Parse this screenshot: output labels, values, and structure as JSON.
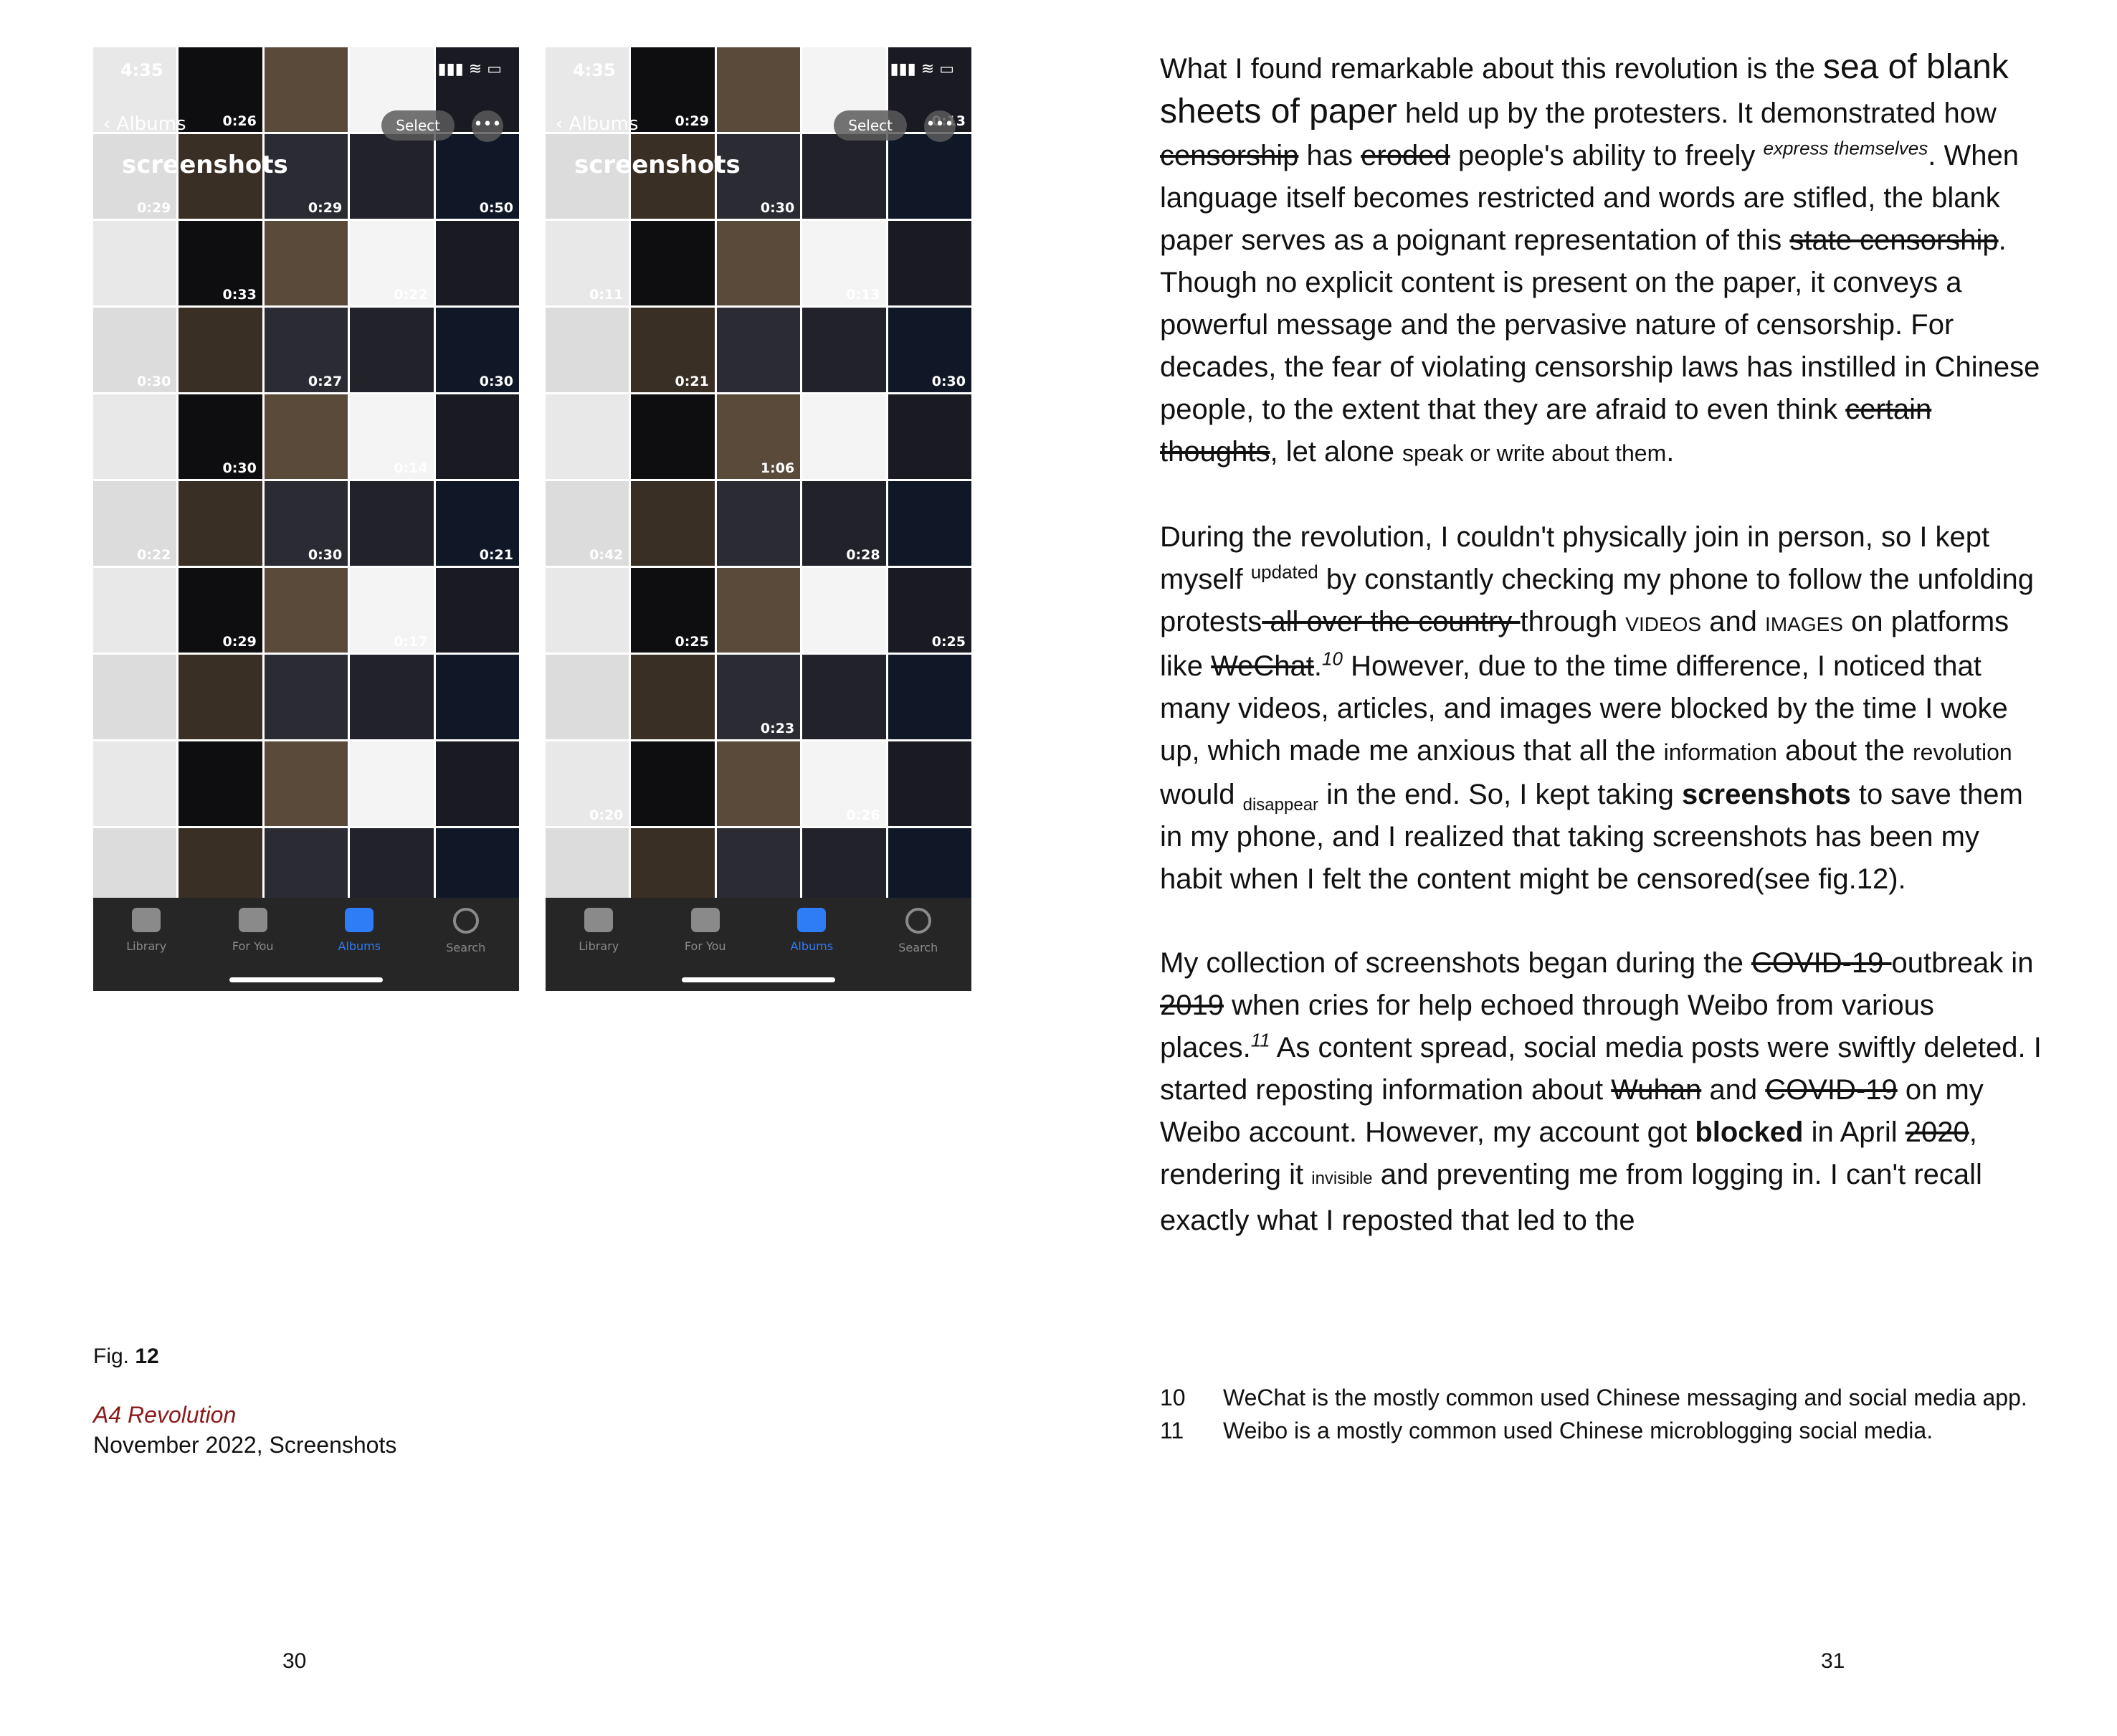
{
  "left_page": {
    "phone_left": {
      "status_time": "4:35",
      "back_label": "Albums",
      "album_title": "screenshots",
      "select_label": "Select",
      "durations": [
        "0:26",
        "0:18",
        "0:29",
        "0:29",
        "0:50",
        "0:33",
        "0:22",
        "0:30",
        "0:27",
        "0:30",
        "0:30",
        "0:14",
        "0:22",
        "0:30",
        "0:21",
        "0:29",
        "0:17"
      ]
    },
    "phone_right": {
      "status_time": "4:35",
      "back_label": "Albums",
      "album_title": "screenshots",
      "select_label": "Select",
      "durations": [
        "0:29",
        "0:13",
        "0:30",
        "0:11",
        "0:13",
        "0:21",
        "0:30",
        "1:06",
        "0:42",
        "0:28",
        "0:25",
        "0:25",
        "0:23",
        "0:20",
        "0:26"
      ]
    },
    "tabs": [
      "Library",
      "For You",
      "Albums",
      "Search"
    ],
    "figure": {
      "label_prefix": "Fig.",
      "label_number": "12",
      "title": "A4 Revolution",
      "subtitle": "November 2022, Screenshots"
    },
    "page_number": "30"
  },
  "right_page": {
    "p1": {
      "a": "What I found remarkable about this revolution is the ",
      "b": "sea of blank sheets of paper",
      "c": " held up by the protesters. It demonstrated how ",
      "d": "censorship",
      "e": " has ",
      "f": "eroded",
      "g": " people's ability to freely ",
      "h": "express themselves",
      "i": ". When language itself becomes restricted and words are stifled, the blank paper serves as a poignant representation of this ",
      "j": "state censorship",
      "k": ". Though no explicit content is present on the paper, it conveys a powerful message and the pervasive nature of censorship. For decades, the fear of violating censorship laws has instilled in Chinese people, to the extent that they are afraid to even think ",
      "l": "certain thoughts",
      "m": ", let alone ",
      "n": "speak or write about them",
      "o": "."
    },
    "p2": {
      "a": "During the revolution, I couldn't physically join in person, so I kept myself ",
      "b": "updated",
      "c": " by constantly checking my phone to follow the unfolding protests",
      "d": " all over the country ",
      "e": "through ",
      "f": "VIDEOS",
      "g": " and ",
      "h": "IMAGES",
      "i": " on platforms like ",
      "j": "WeChat",
      "k": ".",
      "l": "10",
      "m": " However, due to the time difference, I noticed that many videos, articles, and images were blocked by the time I woke up, which made me anxious that all the ",
      "n": "information",
      "o": " about the ",
      "p": "revolution",
      "q": " would ",
      "r": "disappear",
      "s": " in the end. So, I kept taking ",
      "t": "screenshots",
      "u": " to save them in my phone, and I realized that taking screenshots has been my habit when I felt the content might be censored(see fig.12)."
    },
    "p3": {
      "a": "My collection of screenshots began during the ",
      "b": "COVID-19 ",
      "c": "outbreak in ",
      "d": "2019",
      "e": " when cries for help echoed through Weibo from various places.",
      "f": "11",
      "g": " As content spread, social media posts were swiftly deleted. I started reposting information about ",
      "h": "Wuhan",
      "i": " and ",
      "j": "COVID-19",
      "k": " on my Weibo account. However, my account got ",
      "l": "blocked",
      "m": " in April ",
      "n": "2020",
      "o": ", rendering it ",
      "p": "invisible",
      "q": " and preventing me from logging in. I can't recall exactly what I reposted that led to the"
    },
    "footnotes": [
      {
        "num": "10",
        "text": "WeChat is the mostly common used Chinese messaging and social media app."
      },
      {
        "num": "11",
        "text": "Weibo is a mostly common used Chinese microblogging social media."
      }
    ],
    "page_number": "31"
  }
}
